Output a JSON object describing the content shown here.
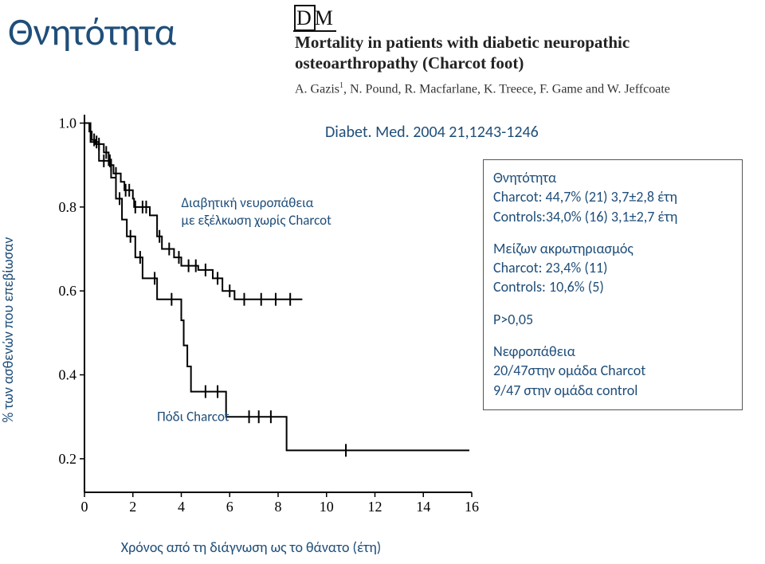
{
  "title": "Θνητότητα",
  "journal": {
    "logo_text": "DM",
    "title": "Mortality in patients with diabetic neuropathic osteoarthropathy (Charcot foot)",
    "authors_html": "A. Gazis¹, N. Pound, R. Macfarlane, K. Treece, F. Game and W. Jeffcoate",
    "citation": "Diabet. Med. 2004 21,1243-1246"
  },
  "chart": {
    "type": "kaplan-meier",
    "ylabel": "% των ασθενών που επεβίωσαν",
    "xlabel": "Χρόνος από τη διάγνωση ως το θάνατο (έτη)",
    "x_ticks": [
      0,
      2,
      4,
      6,
      8,
      10,
      12,
      14,
      16
    ],
    "y_ticks": [
      0.2,
      0.4,
      0.6,
      0.8,
      1.0
    ],
    "xlim": [
      0,
      16
    ],
    "ylim": [
      0.12,
      1.02
    ],
    "line_color": "#000000",
    "line_width": 2,
    "background_color": "#ffffff",
    "series": {
      "controls": {
        "label1": "Διαβητική νευροπάθεια",
        "label2": "με εξέλκωση χωρίς Charcot",
        "label_x": 4.0,
        "label_y": 0.8,
        "steps": [
          [
            0,
            1.0
          ],
          [
            0.2,
            0.98
          ],
          [
            0.3,
            0.96
          ],
          [
            0.45,
            0.95
          ],
          [
            0.8,
            0.93
          ],
          [
            1.0,
            0.9
          ],
          [
            1.2,
            0.88
          ],
          [
            1.5,
            0.86
          ],
          [
            1.65,
            0.84
          ],
          [
            2.0,
            0.82
          ],
          [
            2.05,
            0.8
          ],
          [
            2.7,
            0.78
          ],
          [
            3.0,
            0.73
          ],
          [
            3.2,
            0.7
          ],
          [
            3.7,
            0.68
          ],
          [
            4.0,
            0.66
          ],
          [
            4.7,
            0.65
          ],
          [
            5.3,
            0.63
          ],
          [
            5.7,
            0.6
          ],
          [
            6.2,
            0.58
          ],
          [
            8.0,
            0.58
          ],
          [
            9.0,
            0.58
          ]
        ],
        "censor_x": [
          0.4,
          0.6,
          0.9,
          1.1,
          1.3,
          1.7,
          1.85,
          2.1,
          2.4,
          2.55,
          3.1,
          3.5,
          3.9,
          4.3,
          4.6,
          5.0,
          5.5,
          6.0,
          6.6,
          7.3,
          7.9,
          8.5
        ]
      },
      "charcot": {
        "label": "Πόδι Charcot",
        "label_x": 3.0,
        "label_y": 0.29,
        "steps": [
          [
            0,
            1.0
          ],
          [
            0.25,
            0.955
          ],
          [
            0.6,
            0.91
          ],
          [
            1.1,
            0.87
          ],
          [
            1.3,
            0.82
          ],
          [
            1.55,
            0.77
          ],
          [
            1.75,
            0.73
          ],
          [
            2.1,
            0.68
          ],
          [
            2.4,
            0.63
          ],
          [
            3.0,
            0.58
          ],
          [
            4.0,
            0.53
          ],
          [
            4.1,
            0.47
          ],
          [
            4.25,
            0.42
          ],
          [
            4.4,
            0.36
          ],
          [
            5.8,
            0.36
          ],
          [
            5.85,
            0.3
          ],
          [
            8.3,
            0.3
          ],
          [
            8.35,
            0.22
          ],
          [
            15.9,
            0.22
          ]
        ],
        "censor_x": [
          0.5,
          0.8,
          1.05,
          1.45,
          1.9,
          2.3,
          2.9,
          3.6,
          5.0,
          5.5,
          6.8,
          7.2,
          7.7,
          10.8
        ]
      }
    }
  },
  "stats": {
    "block1_title": "Θνητότητα",
    "block1_line1": "Charcot: 44,7% (21) 3,7±2,8 έτη",
    "block1_line2": "Controls:34,0% (16) 3,1±2,7 έτη",
    "block2_title": "Μείζων ακρωτηριασμός",
    "block2_line1": "Charcot: 23,4% (11)",
    "block2_line2": "Controls: 10,6% (5)",
    "p_line": "P>0,05",
    "block3_title": "Νεφροπάθεια",
    "block3_line1": "20/47στην ομάδα Charcot",
    "block3_line2": "9/47 στην ομάδα control"
  }
}
